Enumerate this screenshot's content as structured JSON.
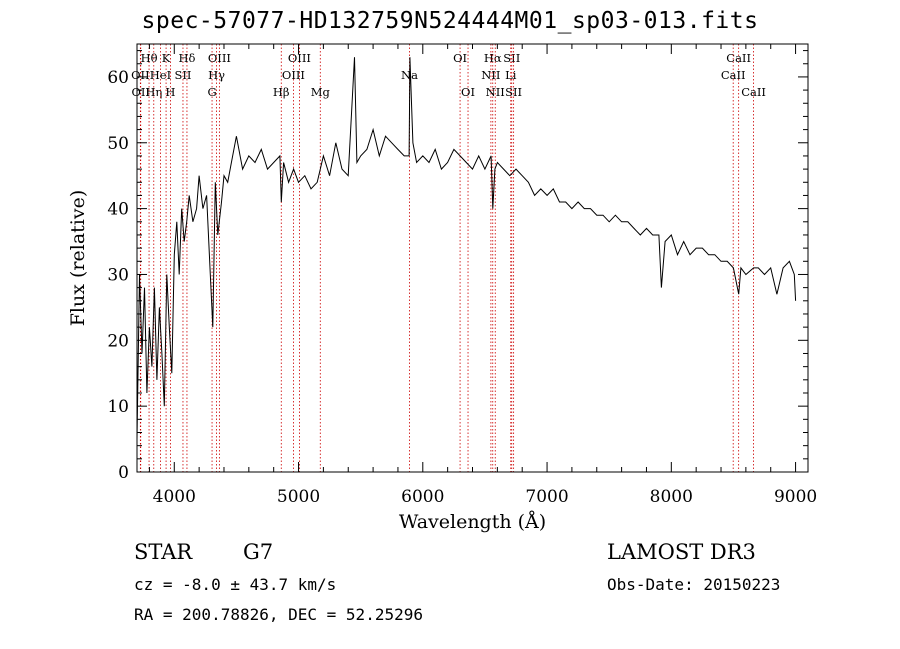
{
  "chart_data": {
    "type": "line",
    "title": "spec-57077-HD132759N524444M01_sp03-013.fits",
    "xlabel": "Wavelength (Å)",
    "ylabel": "Flux (relative)",
    "xlim": [
      3700,
      9100
    ],
    "ylim": [
      0,
      65
    ],
    "xticks": [
      4000,
      5000,
      6000,
      7000,
      8000,
      9000
    ],
    "yticks": [
      0,
      10,
      20,
      30,
      40,
      50,
      60
    ],
    "series": [
      {
        "name": "flux",
        "x": [
          3700,
          3720,
          3740,
          3760,
          3780,
          3800,
          3820,
          3840,
          3860,
          3880,
          3900,
          3920,
          3940,
          3960,
          3980,
          4000,
          4020,
          4040,
          4060,
          4080,
          4100,
          4120,
          4150,
          4180,
          4200,
          4230,
          4260,
          4290,
          4310,
          4330,
          4350,
          4380,
          4400,
          4430,
          4460,
          4500,
          4550,
          4600,
          4650,
          4700,
          4750,
          4800,
          4850,
          4861,
          4880,
          4920,
          4960,
          5000,
          5050,
          5100,
          5150,
          5200,
          5250,
          5300,
          5350,
          5400,
          5450,
          5470,
          5500,
          5550,
          5600,
          5650,
          5700,
          5750,
          5800,
          5850,
          5890,
          5893,
          5896,
          5920,
          5950,
          6000,
          6050,
          6100,
          6150,
          6200,
          6250,
          6300,
          6350,
          6400,
          6450,
          6500,
          6550,
          6563,
          6580,
          6600,
          6650,
          6700,
          6750,
          6800,
          6850,
          6900,
          6950,
          7000,
          7050,
          7100,
          7150,
          7200,
          7250,
          7300,
          7350,
          7400,
          7450,
          7500,
          7550,
          7600,
          7650,
          7700,
          7750,
          7800,
          7850,
          7900,
          7920,
          7950,
          8000,
          8050,
          8100,
          8150,
          8200,
          8250,
          8300,
          8350,
          8400,
          8450,
          8500,
          8542,
          8560,
          8600,
          8662,
          8700,
          8750,
          8800,
          8850,
          8900,
          8950,
          8990,
          9000
        ],
        "values": [
          5,
          30,
          18,
          28,
          12,
          22,
          16,
          28,
          14,
          25,
          18,
          10,
          30,
          22,
          15,
          33,
          38,
          30,
          40,
          35,
          38,
          42,
          38,
          40,
          45,
          40,
          42,
          30,
          22,
          44,
          36,
          41,
          45,
          44,
          47,
          51,
          46,
          48,
          47,
          49,
          46,
          47,
          48,
          41,
          47,
          44,
          46,
          44,
          45,
          43,
          44,
          48,
          45,
          50,
          46,
          45,
          63,
          47,
          48,
          49,
          52,
          48,
          51,
          50,
          49,
          48,
          48,
          55,
          63,
          50,
          47,
          48,
          47,
          49,
          46,
          47,
          49,
          48,
          47,
          46,
          48,
          46,
          48,
          40,
          46,
          47,
          46,
          45,
          46,
          45,
          44,
          42,
          43,
          42,
          43,
          41,
          41,
          40,
          41,
          40,
          40,
          39,
          39,
          38,
          39,
          38,
          38,
          37,
          36,
          37,
          36,
          36,
          28,
          35,
          36,
          33,
          35,
          33,
          34,
          34,
          33,
          33,
          32,
          32,
          31,
          27,
          31,
          30,
          31,
          31,
          30,
          31,
          27,
          31,
          32,
          30,
          26
        ]
      }
    ],
    "line_markers": [
      {
        "label": "Hθ",
        "x": 3797,
        "row": 0
      },
      {
        "label": "OII",
        "x": 3727,
        "row": 1
      },
      {
        "label": "OII",
        "x": 3730,
        "row": 2
      },
      {
        "label": "Hη",
        "x": 3835,
        "row": 2
      },
      {
        "label": "HeI",
        "x": 3889,
        "row": 1
      },
      {
        "label": "K",
        "x": 3934,
        "row": 0
      },
      {
        "label": "H",
        "x": 3969,
        "row": 2
      },
      {
        "label": "SII",
        "x": 4070,
        "row": 1
      },
      {
        "label": "Hδ",
        "x": 4102,
        "row": 0
      },
      {
        "label": "OIII",
        "x": 4363,
        "row": 0
      },
      {
        "label": "Hγ",
        "x": 4340,
        "row": 1
      },
      {
        "label": "G",
        "x": 4304,
        "row": 2
      },
      {
        "label": "Hβ",
        "x": 4861,
        "row": 2
      },
      {
        "label": "OIII",
        "x": 5007,
        "row": 0
      },
      {
        "label": "OIII",
        "x": 4959,
        "row": 1
      },
      {
        "label": "Mg",
        "x": 5175,
        "row": 2
      },
      {
        "label": "Na",
        "x": 5893,
        "row": 1
      },
      {
        "label": "OI",
        "x": 6300,
        "row": 0
      },
      {
        "label": "OI",
        "x": 6364,
        "row": 2
      },
      {
        "label": "Hα",
        "x": 6563,
        "row": 0
      },
      {
        "label": "NII",
        "x": 6548,
        "row": 1
      },
      {
        "label": "NII",
        "x": 6583,
        "row": 2
      },
      {
        "label": "SII",
        "x": 6716,
        "row": 0
      },
      {
        "label": "Li",
        "x": 6708,
        "row": 1
      },
      {
        "label": "SII",
        "x": 6731,
        "row": 2
      },
      {
        "label": "CaII",
        "x": 8542,
        "row": 0
      },
      {
        "label": "CaII",
        "x": 8498,
        "row": 1
      },
      {
        "label": "CaII",
        "x": 8662,
        "row": 2
      }
    ],
    "marker_color": "#cc0000"
  },
  "info": {
    "object_type": "STAR",
    "subclass": "G7",
    "survey": "LAMOST DR3",
    "redshift": "cz = -8.0 ± 43.7 km/s",
    "obs_date": "Obs-Date: 20150223",
    "coords": "RA = 200.78826, DEC =  52.25296"
  }
}
